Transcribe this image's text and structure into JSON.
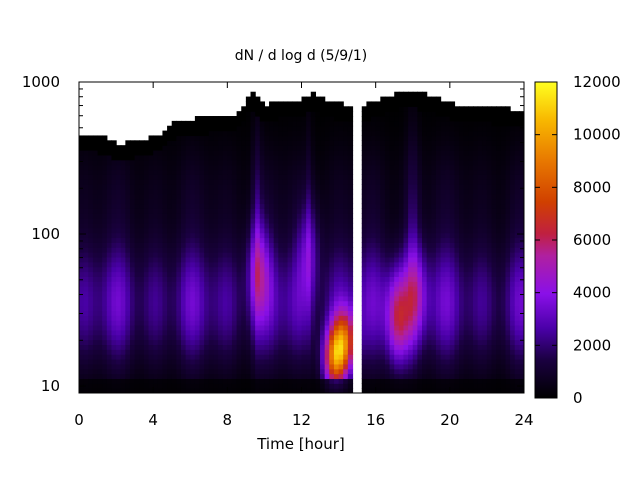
{
  "chart_data": {
    "type": "heatmap",
    "title": "dN / d log d (5/9/1)",
    "xlabel": "Time [hour]",
    "ylabel": "",
    "xlim": [
      0,
      24
    ],
    "ylim": [
      9,
      1000
    ],
    "y_scale": "log",
    "x_ticks": [
      "0",
      "4",
      "8",
      "12",
      "16",
      "20",
      "24"
    ],
    "y_ticks": [
      "10",
      "100",
      "1000"
    ],
    "colorbar": {
      "range": [
        0,
        12000
      ],
      "ticks": [
        "0",
        "2000",
        "4000",
        "6000",
        "8000",
        "10000",
        "12000"
      ],
      "palette": "black-blue-purple-red-orange-yellow"
    },
    "missing_data_x": [
      14.75,
      15.2
    ],
    "upper_size_limit": [
      {
        "x": 0.0,
        "d": 460
      },
      {
        "x": 1.5,
        "d": 430
      },
      {
        "x": 2.0,
        "d": 390
      },
      {
        "x": 3.5,
        "d": 420
      },
      {
        "x": 4.5,
        "d": 460
      },
      {
        "x": 5.0,
        "d": 540
      },
      {
        "x": 6.5,
        "d": 580
      },
      {
        "x": 7.5,
        "d": 600
      },
      {
        "x": 8.5,
        "d": 600
      },
      {
        "x": 9.3,
        "d": 850
      },
      {
        "x": 10.0,
        "d": 700
      },
      {
        "x": 11.0,
        "d": 760
      },
      {
        "x": 12.0,
        "d": 750
      },
      {
        "x": 12.5,
        "d": 850
      },
      {
        "x": 13.5,
        "d": 750
      },
      {
        "x": 14.5,
        "d": 700
      },
      {
        "x": 15.5,
        "d": 720
      },
      {
        "x": 16.5,
        "d": 800
      },
      {
        "x": 17.5,
        "d": 880
      },
      {
        "x": 18.5,
        "d": 850
      },
      {
        "x": 19.5,
        "d": 780
      },
      {
        "x": 20.5,
        "d": 700
      },
      {
        "x": 21.5,
        "d": 720
      },
      {
        "x": 22.5,
        "d": 680
      },
      {
        "x": 24.0,
        "d": 650
      }
    ],
    "peak_features": [
      {
        "x": 9.7,
        "d": 60,
        "value": 5200
      },
      {
        "x": 12.4,
        "d": 80,
        "value": 4500
      },
      {
        "x": 13.8,
        "d": 15,
        "value": 9500
      },
      {
        "x": 14.3,
        "d": 20,
        "value": 8200
      },
      {
        "x": 17.2,
        "d": 28,
        "value": 7200
      },
      {
        "x": 18.2,
        "d": 40,
        "value": 5000
      }
    ]
  }
}
